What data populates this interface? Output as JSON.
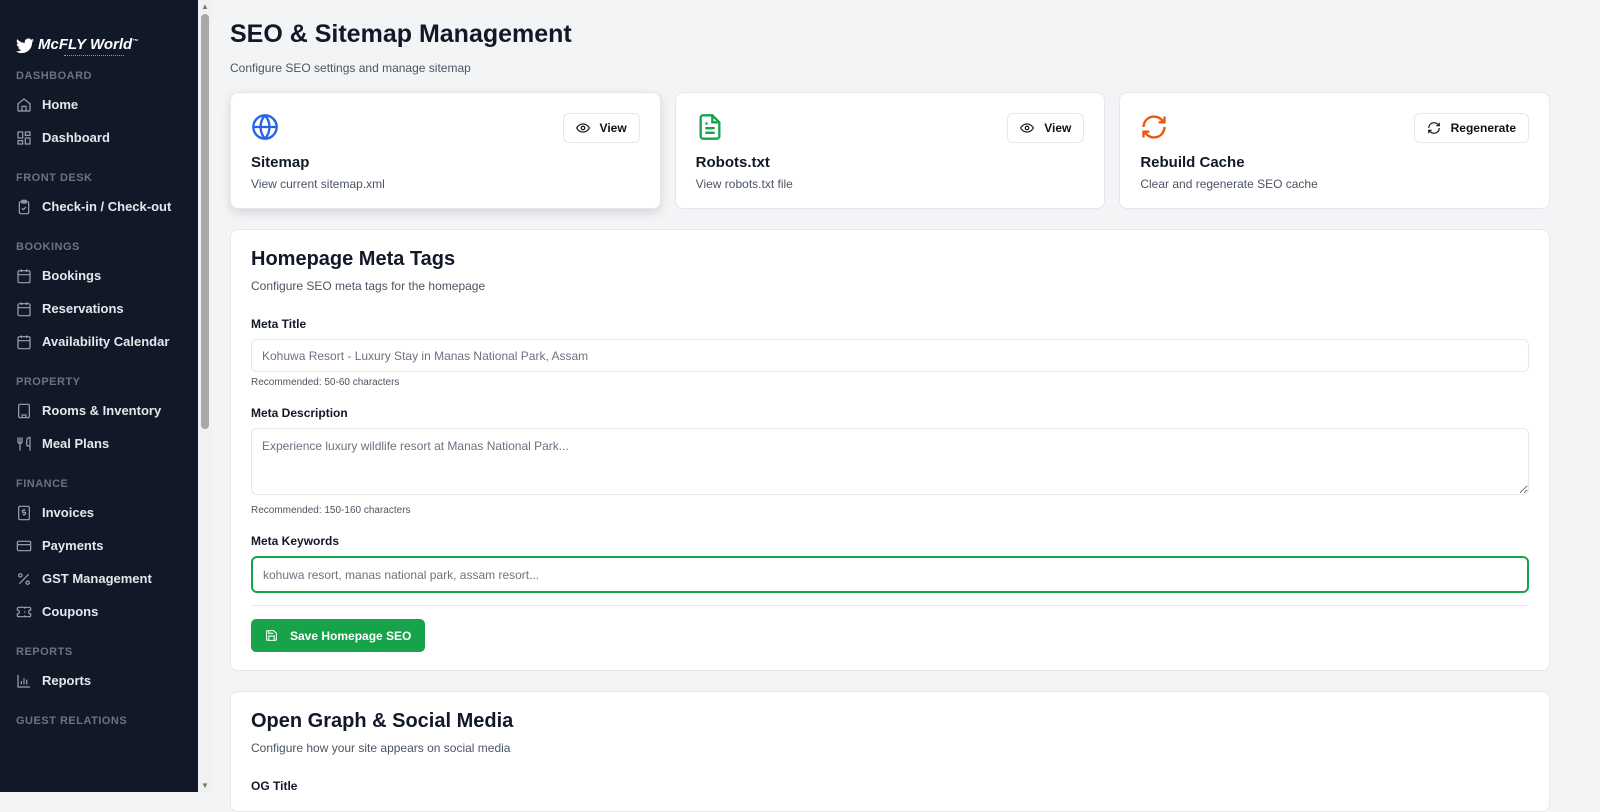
{
  "logo": {
    "name": "McFLY World",
    "tm": "™"
  },
  "sidebar": [
    {
      "section": "DASHBOARD",
      "items": [
        {
          "label": "Home",
          "icon": "home-icon"
        },
        {
          "label": "Dashboard",
          "icon": "dashboard-icon"
        }
      ]
    },
    {
      "section": "FRONT DESK",
      "items": [
        {
          "label": "Check-in / Check-out",
          "icon": "clipboard-check-icon"
        }
      ]
    },
    {
      "section": "BOOKINGS",
      "items": [
        {
          "label": "Bookings",
          "icon": "calendar-icon"
        },
        {
          "label": "Reservations",
          "icon": "calendar-icon"
        },
        {
          "label": "Availability Calendar",
          "icon": "calendar-grid-icon"
        }
      ]
    },
    {
      "section": "PROPERTY",
      "items": [
        {
          "label": "Rooms & Inventory",
          "icon": "building-icon"
        },
        {
          "label": "Meal Plans",
          "icon": "utensils-icon"
        }
      ]
    },
    {
      "section": "FINANCE",
      "items": [
        {
          "label": "Invoices",
          "icon": "dollar-receipt-icon"
        },
        {
          "label": "Payments",
          "icon": "credit-card-icon"
        },
        {
          "label": "GST Management",
          "icon": "percent-icon"
        },
        {
          "label": "Coupons",
          "icon": "ticket-icon"
        }
      ]
    },
    {
      "section": "REPORTS",
      "items": [
        {
          "label": "Reports",
          "icon": "bar-chart-icon"
        }
      ]
    },
    {
      "section": "GUEST RELATIONS",
      "items": []
    }
  ],
  "header": {
    "title": "SEO & Sitemap Management",
    "subtitle": "Configure SEO settings and manage sitemap"
  },
  "cards": [
    {
      "title": "Sitemap",
      "desc": "View current sitemap.xml",
      "button": "View",
      "icon": "globe-icon",
      "color": "#2563eb"
    },
    {
      "title": "Robots.txt",
      "desc": "View robots.txt file",
      "button": "View",
      "icon": "file-text-icon",
      "color": "#16a34a"
    },
    {
      "title": "Rebuild Cache",
      "desc": "Clear and regenerate SEO cache",
      "button": "Regenerate",
      "icon": "refresh-icon",
      "color": "#ea580c"
    }
  ],
  "meta": {
    "title": "Homepage Meta Tags",
    "desc": "Configure SEO meta tags for the homepage",
    "title_label": "Meta Title",
    "title_placeholder": "Kohuwa Resort - Luxury Stay in Manas National Park, Assam",
    "title_hint": "Recommended: 50-60 characters",
    "desc_label": "Meta Description",
    "desc_placeholder": "Experience luxury wildlife resort at Manas National Park...",
    "desc_hint": "Recommended: 150-160 characters",
    "kw_label": "Meta Keywords",
    "kw_placeholder": "kohuwa resort, manas national park, assam resort...",
    "save": "Save Homepage SEO"
  },
  "og": {
    "title": "Open Graph & Social Media",
    "desc": "Configure how your site appears on social media",
    "og_title_label": "OG Title"
  },
  "colors": {
    "sidebar": "#111827",
    "accent": "#16a34a"
  }
}
